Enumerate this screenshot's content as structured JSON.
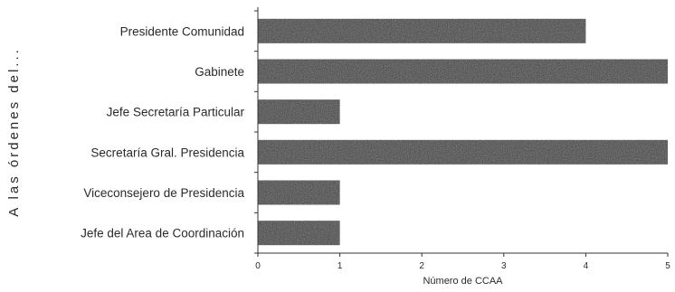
{
  "chart_data": {
    "type": "bar",
    "orientation": "horizontal",
    "categories": [
      "Presidente Comunidad",
      "Gabinete",
      "Jefe Secretaría Particular",
      "Secretaría Gral. Presidencia",
      "Viceconsejero de Presidencia",
      "Jefe del Area de Coordinación"
    ],
    "values": [
      4,
      5,
      1,
      5,
      1,
      1
    ],
    "xlabel": "Número de CCAA",
    "ylabel": "A las órdenes del...",
    "xlim": [
      0,
      5
    ],
    "xticks": [
      "0",
      "1",
      "2",
      "3",
      "4",
      "5"
    ],
    "grid": false,
    "bar_color": "#3a3a3a"
  }
}
